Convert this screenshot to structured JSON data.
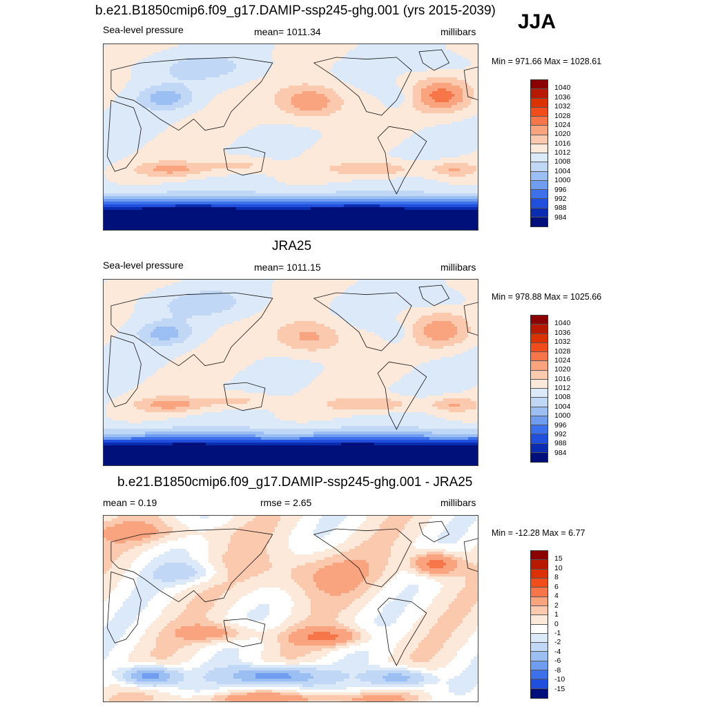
{
  "season": "JJA",
  "panels": [
    {
      "title": "b.e21.B1850cmip6.f09_g17.DAMIP-ssp245-ghg.001 (yrs 2015-2039)",
      "left_label": "Sea-level pressure",
      "center_label": "mean= 1011.34",
      "units": "millibars",
      "minmax": "Min = 971.66 Max = 1028.61",
      "field": "model"
    },
    {
      "title": "JRA25",
      "left_label": "Sea-level pressure",
      "center_label": "mean= 1011.15",
      "units": "millibars",
      "minmax": "Min = 978.88 Max = 1025.66",
      "field": "obs"
    },
    {
      "title": "b.e21.B1850cmip6.f09_g17.DAMIP-ssp245-ghg.001 - JRA25",
      "left_label": "mean =   0.19",
      "center_label": "rmse =   2.65",
      "units": "millibars",
      "minmax": "Min = -12.28 Max =   6.77",
      "field": "diff"
    }
  ],
  "colorbars": {
    "slp": {
      "labels": [
        "1040",
        "1036",
        "1032",
        "1028",
        "1024",
        "1020",
        "1016",
        "1012",
        "1008",
        "1004",
        "1000",
        "996",
        "992",
        "988",
        "984"
      ],
      "colors": [
        "#8b0000",
        "#b81a00",
        "#dc3200",
        "#f04d1a",
        "#f6764a",
        "#f9a47e",
        "#fbc9ad",
        "#fde9d9",
        "#dce9f8",
        "#c0d7f5",
        "#9bbff3",
        "#6f9ef0",
        "#3d71ec",
        "#1f4fdc",
        "#0a2cb0",
        "#00107a"
      ]
    },
    "diff": {
      "labels": [
        "15",
        "10",
        "8",
        "6",
        "4",
        "2",
        "1",
        "0",
        "-1",
        "-2",
        "-4",
        "-6",
        "-8",
        "-10",
        "-15"
      ],
      "colors": [
        "#8b0000",
        "#b81a00",
        "#dc3200",
        "#f04d1a",
        "#f6764a",
        "#f9a47e",
        "#fbc9ad",
        "#fde9d9",
        "#ffffff",
        "#dce9f8",
        "#c0d7f5",
        "#9bbff3",
        "#6f9ef0",
        "#3d71ec",
        "#1f4fdc",
        "#00107a"
      ]
    }
  }
}
